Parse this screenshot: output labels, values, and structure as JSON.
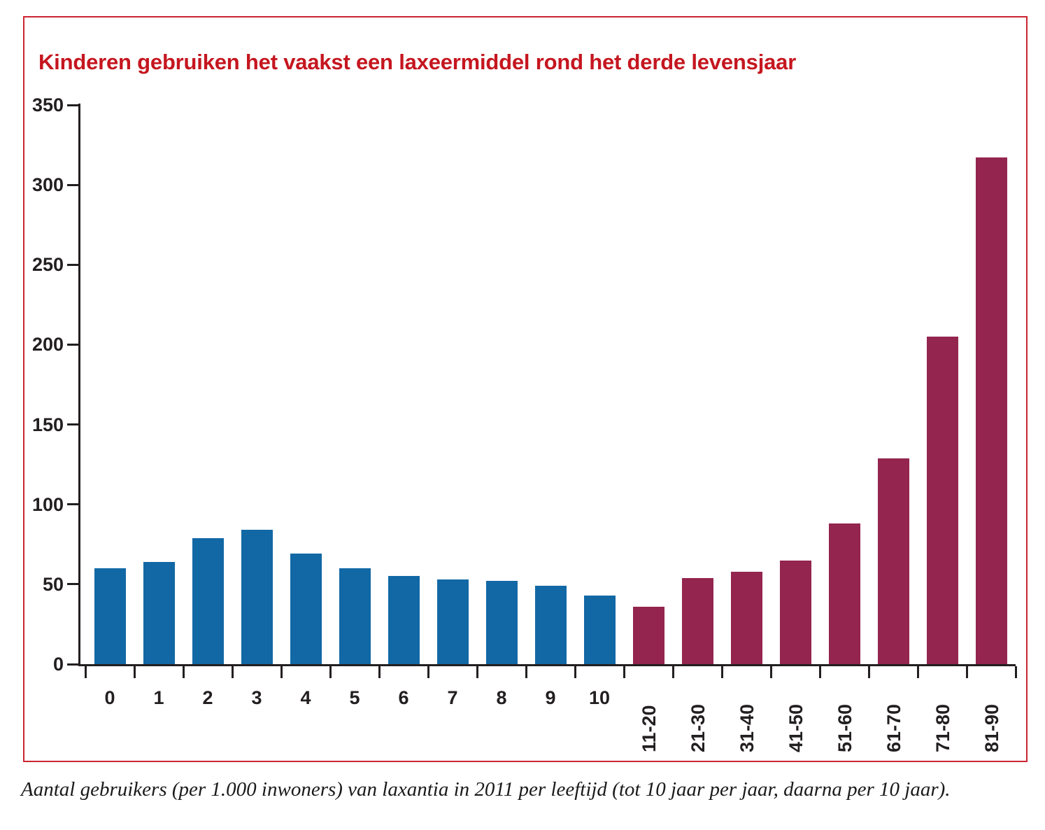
{
  "title": {
    "text": "Kinderen gebruiken het vaakst een laxeermiddel rond het derde levensjaar"
  },
  "caption": {
    "text": "Aantal gebruikers (per 1.000 inwoners) van laxantia in 2011 per leeftijd (tot 10 jaar per jaar, daarna per 10 jaar)."
  },
  "colors": {
    "frame_border": "#cb2431",
    "title_red": "#c5161f",
    "axis": "#231f20",
    "bar_child_blue": "#1268a5",
    "bar_adult_maroon": "#93254e"
  },
  "chart_data": {
    "type": "bar",
    "title": "Kinderen gebruiken het vaakst een laxeermiddel rond het derde levensjaar",
    "categories": [
      "0",
      "1",
      "2",
      "3",
      "4",
      "5",
      "6",
      "7",
      "8",
      "9",
      "10",
      "11-20",
      "21-30",
      "31-40",
      "41-50",
      "51-60",
      "61-70",
      "71-80",
      "81-90"
    ],
    "values": [
      60,
      64,
      79,
      84,
      69,
      60,
      55,
      53,
      52,
      49,
      43,
      36,
      54,
      58,
      65,
      88,
      129,
      205,
      317
    ],
    "bar_groups": [
      {
        "name": "per jaar (0-10)",
        "color": "#1268a5",
        "from": 0,
        "to": 10,
        "label_style": "horizontal"
      },
      {
        "name": "per 10 jaar (11-90)",
        "color": "#93254e",
        "from": 11,
        "to": 18,
        "label_style": "rotated"
      }
    ],
    "xlabel": "",
    "ylabel": "",
    "ylim": [
      0,
      350
    ],
    "yticks": [
      0,
      50,
      100,
      150,
      200,
      250,
      300,
      350
    ],
    "grid": "off",
    "legend": "none"
  }
}
